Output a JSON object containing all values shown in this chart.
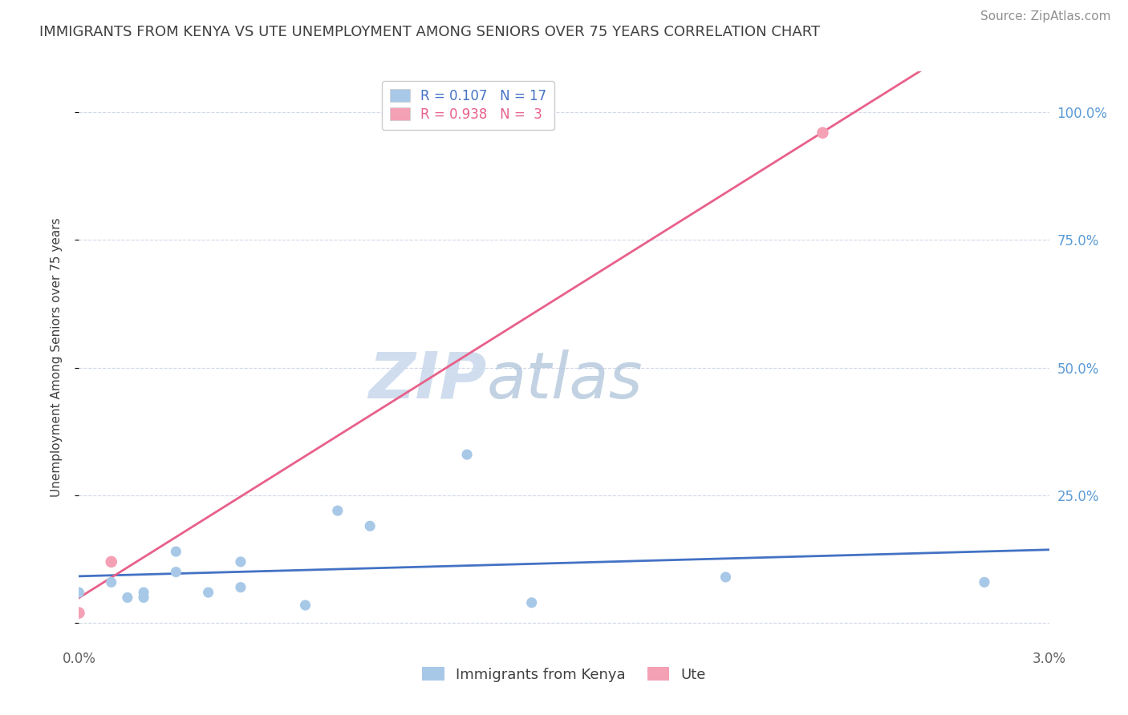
{
  "title": "IMMIGRANTS FROM KENYA VS UTE UNEMPLOYMENT AMONG SENIORS OVER 75 YEARS CORRELATION CHART",
  "source": "Source: ZipAtlas.com",
  "ylabel": "Unemployment Among Seniors over 75 years",
  "x_label_bottom": "Immigrants from Kenya",
  "legend_series1": "Immigrants from Kenya",
  "legend_series2": "Ute",
  "x_min": 0.0,
  "x_max": 0.03,
  "y_min": -0.04,
  "y_max": 1.08,
  "y_ticks": [
    0.0,
    0.25,
    0.5,
    0.75,
    1.0
  ],
  "y_tick_labels_right": [
    "",
    "25.0%",
    "50.0%",
    "75.0%",
    "100.0%"
  ],
  "x_ticks": [
    0.0,
    0.005,
    0.01,
    0.015,
    0.02,
    0.025,
    0.03
  ],
  "x_tick_labels": [
    "0.0%",
    "",
    "",
    "",
    "",
    "",
    "3.0%"
  ],
  "blue_color": "#A8C8E8",
  "pink_color": "#F4A0B5",
  "blue_line_color": "#4472C4",
  "pink_line_color": "#E8608A",
  "legend_R1": "0.107",
  "legend_N1": "17",
  "legend_R2": "0.938",
  "legend_N2": "3",
  "watermark_zip": "ZIP",
  "watermark_atlas": "atlas",
  "blue_scatter_x": [
    0.0,
    0.001,
    0.0015,
    0.002,
    0.002,
    0.003,
    0.003,
    0.004,
    0.005,
    0.005,
    0.007,
    0.008,
    0.009,
    0.012,
    0.014,
    0.02,
    0.028
  ],
  "blue_scatter_y": [
    0.06,
    0.08,
    0.05,
    0.06,
    0.05,
    0.14,
    0.1,
    0.06,
    0.12,
    0.07,
    0.035,
    0.22,
    0.19,
    0.33,
    0.04,
    0.09,
    0.08
  ],
  "pink_scatter_x": [
    0.0,
    0.001,
    0.023
  ],
  "pink_scatter_y": [
    0.02,
    0.12,
    0.96
  ],
  "background_color": "#FFFFFF",
  "grid_color": "#D0D8E8",
  "title_color": "#404040",
  "source_color": "#909090",
  "right_tick_color": "#5B9BD5"
}
